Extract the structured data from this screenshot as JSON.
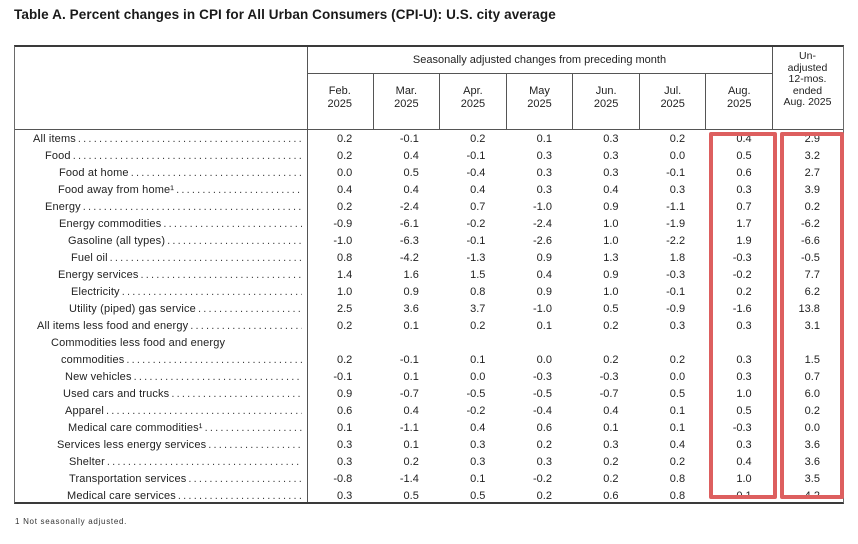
{
  "title": "Table A. Percent changes in CPI for All Urban Consumers (CPI-U): U.S. city average",
  "table": {
    "group_header": "Seasonally adjusted changes from preceding month",
    "month_headers": [
      {
        "month": "Feb.",
        "year": "2025"
      },
      {
        "month": "Mar.",
        "year": "2025"
      },
      {
        "month": "Apr.",
        "year": "2025"
      },
      {
        "month": "May",
        "year": "2025"
      },
      {
        "month": "Jun.",
        "year": "2025"
      },
      {
        "month": "Jul.",
        "year": "2025"
      },
      {
        "month": "Aug.",
        "year": "2025"
      }
    ],
    "unadjusted_header_lines": [
      "Un-",
      "adjusted",
      "12-mos.",
      "ended",
      "Aug. 2025"
    ],
    "rows": [
      {
        "label": "All items",
        "indent": 18,
        "values": [
          "0.2",
          "-0.1",
          "0.2",
          "0.1",
          "0.3",
          "0.2",
          "0.4"
        ],
        "annual": "2.9"
      },
      {
        "label": "Food",
        "indent": 30,
        "values": [
          "0.2",
          "0.4",
          "-0.1",
          "0.3",
          "0.3",
          "0.0",
          "0.5"
        ],
        "annual": "3.2"
      },
      {
        "label": "Food at home",
        "indent": 44,
        "values": [
          "0.0",
          "0.5",
          "-0.4",
          "0.3",
          "0.3",
          "-0.1",
          "0.6"
        ],
        "annual": "2.7"
      },
      {
        "label": "Food away from home¹",
        "indent": 43,
        "values": [
          "0.4",
          "0.4",
          "0.4",
          "0.3",
          "0.4",
          "0.3",
          "0.3"
        ],
        "annual": "3.9"
      },
      {
        "label": "Energy",
        "indent": 30,
        "values": [
          "0.2",
          "-2.4",
          "0.7",
          "-1.0",
          "0.9",
          "-1.1",
          "0.7"
        ],
        "annual": "0.2"
      },
      {
        "label": "Energy commodities",
        "indent": 44,
        "values": [
          "-0.9",
          "-6.1",
          "-0.2",
          "-2.4",
          "1.0",
          "-1.9",
          "1.7"
        ],
        "annual": "-6.2"
      },
      {
        "label": "Gasoline (all types)",
        "indent": 53,
        "values": [
          "-1.0",
          "-6.3",
          "-0.1",
          "-2.6",
          "1.0",
          "-2.2",
          "1.9"
        ],
        "annual": "-6.6"
      },
      {
        "label": "Fuel oil",
        "indent": 56,
        "values": [
          "0.8",
          "-4.2",
          "-1.3",
          "0.9",
          "1.3",
          "1.8",
          "-0.3"
        ],
        "annual": "-0.5"
      },
      {
        "label": "Energy services",
        "indent": 43,
        "values": [
          "1.4",
          "1.6",
          "1.5",
          "0.4",
          "0.9",
          "-0.3",
          "-0.2"
        ],
        "annual": "7.7"
      },
      {
        "label": "Electricity",
        "indent": 56,
        "values": [
          "1.0",
          "0.9",
          "0.8",
          "0.9",
          "1.0",
          "-0.1",
          "0.2"
        ],
        "annual": "6.2"
      },
      {
        "label": "Utility (piped) gas service",
        "indent": 54,
        "values": [
          "2.5",
          "3.6",
          "3.7",
          "-1.0",
          "0.5",
          "-0.9",
          "-1.6"
        ],
        "annual": "13.8"
      },
      {
        "label": "All items less food and energy",
        "indent": 22,
        "values": [
          "0.2",
          "0.1",
          "0.2",
          "0.1",
          "0.2",
          "0.3",
          "0.3"
        ],
        "annual": "3.1"
      },
      {
        "label": "Commodities less food and energy",
        "label2": "commodities",
        "indent": 36,
        "indent2": 46,
        "values": [
          "0.2",
          "-0.1",
          "0.1",
          "0.0",
          "0.2",
          "0.2",
          "0.3"
        ],
        "annual": "1.5"
      },
      {
        "label": "New vehicles",
        "indent": 50,
        "values": [
          "-0.1",
          "0.1",
          "0.0",
          "-0.3",
          "-0.3",
          "0.0",
          "0.3"
        ],
        "annual": "0.7"
      },
      {
        "label": "Used cars and trucks",
        "indent": 48,
        "values": [
          "0.9",
          "-0.7",
          "-0.5",
          "-0.5",
          "-0.7",
          "0.5",
          "1.0"
        ],
        "annual": "6.0"
      },
      {
        "label": "Apparel",
        "indent": 50,
        "values": [
          "0.6",
          "0.4",
          "-0.2",
          "-0.4",
          "0.4",
          "0.1",
          "0.5"
        ],
        "annual": "0.2"
      },
      {
        "label": "Medical care commodities¹",
        "indent": 53,
        "values": [
          "0.1",
          "-1.1",
          "0.4",
          "0.6",
          "0.1",
          "0.1",
          "-0.3"
        ],
        "annual": "0.0"
      },
      {
        "label": "Services less energy services",
        "indent": 42,
        "values": [
          "0.3",
          "0.1",
          "0.3",
          "0.2",
          "0.3",
          "0.4",
          "0.3"
        ],
        "annual": "3.6"
      },
      {
        "label": "Shelter",
        "indent": 54,
        "values": [
          "0.3",
          "0.2",
          "0.3",
          "0.3",
          "0.2",
          "0.2",
          "0.4"
        ],
        "annual": "3.6"
      },
      {
        "label": "Transportation services",
        "indent": 54,
        "values": [
          "-0.8",
          "-1.4",
          "0.1",
          "-0.2",
          "0.2",
          "0.8",
          "1.0"
        ],
        "annual": "3.5"
      },
      {
        "label": "Medical care services",
        "indent": 52,
        "values": [
          "0.3",
          "0.5",
          "0.5",
          "0.2",
          "0.6",
          "0.8",
          "-0.1"
        ],
        "annual": "4.2"
      }
    ]
  },
  "footnote": "1 Not seasonally adjusted.",
  "colors": {
    "highlight_box": "#dd5f5f"
  }
}
